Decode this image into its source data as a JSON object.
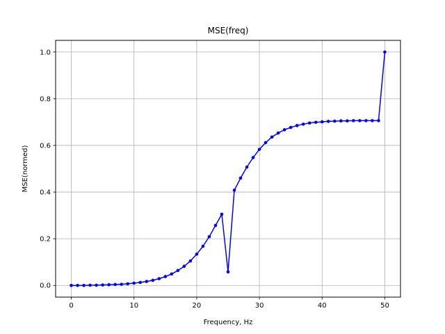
{
  "chart_data": {
    "type": "line",
    "title": "MSE(freq)",
    "xlabel": "Frequency, Hz",
    "ylabel": "MSE(normed)",
    "xlim": [
      -2.5,
      52.5
    ],
    "ylim": [
      -0.05,
      1.05
    ],
    "xticks": [
      0,
      10,
      20,
      30,
      40,
      50
    ],
    "yticks": [
      0.0,
      0.2,
      0.4,
      0.6,
      0.8,
      1.0
    ],
    "xtick_labels": [
      "0",
      "10",
      "20",
      "30",
      "40",
      "50"
    ],
    "ytick_labels": [
      "0.0",
      "0.2",
      "0.4",
      "0.6",
      "0.8",
      "1.0"
    ],
    "grid": true,
    "series": [
      {
        "color": "#0000ff",
        "marker": "circle",
        "x": [
          0,
          1,
          2,
          3,
          4,
          5,
          6,
          7,
          8,
          9,
          10,
          11,
          12,
          13,
          14,
          15,
          16,
          17,
          18,
          19,
          20,
          21,
          22,
          23,
          24,
          25,
          26,
          27,
          28,
          29,
          30,
          31,
          32,
          33,
          34,
          35,
          36,
          37,
          38,
          39,
          40,
          41,
          42,
          43,
          44,
          45,
          46,
          47,
          48,
          49,
          50
        ],
        "y": [
          0.0,
          0.0,
          0.0,
          0.001,
          0.001,
          0.002,
          0.003,
          0.004,
          0.005,
          0.007,
          0.01,
          0.013,
          0.017,
          0.022,
          0.029,
          0.038,
          0.049,
          0.064,
          0.082,
          0.105,
          0.134,
          0.168,
          0.209,
          0.257,
          0.305,
          0.058,
          0.408,
          0.46,
          0.507,
          0.548,
          0.583,
          0.612,
          0.636,
          0.653,
          0.667,
          0.677,
          0.685,
          0.691,
          0.696,
          0.699,
          0.701,
          0.703,
          0.704,
          0.705,
          0.705,
          0.706,
          0.706,
          0.706,
          0.706,
          0.706,
          1.0
        ]
      }
    ]
  }
}
